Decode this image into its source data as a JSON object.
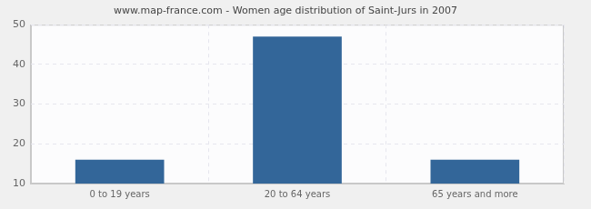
{
  "chart_data": {
    "type": "bar",
    "title": "www.map-france.com - Women age distribution of Saint-Jurs in 2007",
    "categories": [
      "0 to 19 years",
      "20 to 64 years",
      "65 years and more"
    ],
    "values": [
      16,
      47,
      16
    ],
    "color": "#336699",
    "ylim": [
      10,
      50
    ],
    "yticks": [
      10,
      20,
      30,
      40,
      50
    ],
    "grid": true
  }
}
